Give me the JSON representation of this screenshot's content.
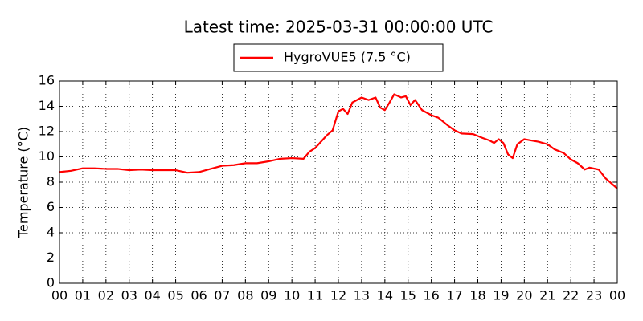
{
  "chart_data": {
    "type": "line",
    "title": "Latest time: 2025-03-31 00:00:00 UTC",
    "ylabel": "Temperature (°C)",
    "legend": "upper center",
    "grid": true,
    "x": [
      0,
      0.5,
      1,
      1.5,
      2,
      2.5,
      3,
      3.5,
      4,
      4.5,
      5,
      5.5,
      6,
      6.5,
      7,
      7.5,
      8,
      8.5,
      9,
      9.5,
      10,
      10.5,
      10.75,
      11,
      11.5,
      11.75,
      12,
      12.2,
      12.4,
      12.6,
      13,
      13.3,
      13.6,
      13.8,
      14,
      14.2,
      14.4,
      14.7,
      14.9,
      15.1,
      15.3,
      15.6,
      16,
      16.3,
      16.7,
      17,
      17.3,
      17.8,
      18.2,
      18.5,
      18.7,
      18.9,
      19.1,
      19.3,
      19.5,
      19.7,
      20,
      20.3,
      20.6,
      21,
      21.3,
      21.7,
      22,
      22.3,
      22.6,
      22.8,
      23.2,
      23.5,
      24
    ],
    "series": [
      {
        "name": "HygroVUE5 (7.5 °C)",
        "color": "#ff0000",
        "values": [
          8.8,
          8.9,
          9.1,
          9.1,
          9.05,
          9.05,
          8.95,
          9.0,
          8.95,
          8.95,
          8.95,
          8.75,
          8.8,
          9.05,
          9.3,
          9.35,
          9.5,
          9.5,
          9.65,
          9.85,
          9.9,
          9.85,
          10.4,
          10.7,
          11.7,
          12.1,
          13.6,
          13.8,
          13.4,
          14.3,
          14.7,
          14.5,
          14.7,
          13.9,
          13.7,
          14.3,
          14.95,
          14.7,
          14.8,
          14.1,
          14.5,
          13.7,
          13.3,
          13.1,
          12.5,
          12.1,
          11.85,
          11.8,
          11.5,
          11.3,
          11.1,
          11.4,
          11.1,
          10.2,
          9.9,
          11.0,
          11.4,
          11.3,
          11.2,
          11.0,
          10.6,
          10.3,
          9.8,
          9.5,
          9.0,
          9.15,
          9.0,
          8.3,
          7.5
        ]
      }
    ],
    "xlim": [
      0,
      24
    ],
    "xticks": [
      {
        "value": 0,
        "label": "00"
      },
      {
        "value": 1,
        "label": "01"
      },
      {
        "value": 2,
        "label": "02"
      },
      {
        "value": 3,
        "label": "03"
      },
      {
        "value": 4,
        "label": "04"
      },
      {
        "value": 5,
        "label": "05"
      },
      {
        "value": 6,
        "label": "06"
      },
      {
        "value": 7,
        "label": "07"
      },
      {
        "value": 8,
        "label": "08"
      },
      {
        "value": 9,
        "label": "09"
      },
      {
        "value": 10,
        "label": "10"
      },
      {
        "value": 11,
        "label": "11"
      },
      {
        "value": 12,
        "label": "12"
      },
      {
        "value": 13,
        "label": "13"
      },
      {
        "value": 14,
        "label": "14"
      },
      {
        "value": 15,
        "label": "15"
      },
      {
        "value": 16,
        "label": "16"
      },
      {
        "value": 17,
        "label": "17"
      },
      {
        "value": 18,
        "label": "18"
      },
      {
        "value": 19,
        "label": "19"
      },
      {
        "value": 20,
        "label": "20"
      },
      {
        "value": 21,
        "label": "21"
      },
      {
        "value": 22,
        "label": "22"
      },
      {
        "value": 23,
        "label": "23"
      },
      {
        "value": 24,
        "label": "00"
      }
    ],
    "ylim": [
      0,
      16
    ],
    "yticks": [
      0,
      2,
      4,
      6,
      8,
      10,
      12,
      14,
      16
    ]
  }
}
